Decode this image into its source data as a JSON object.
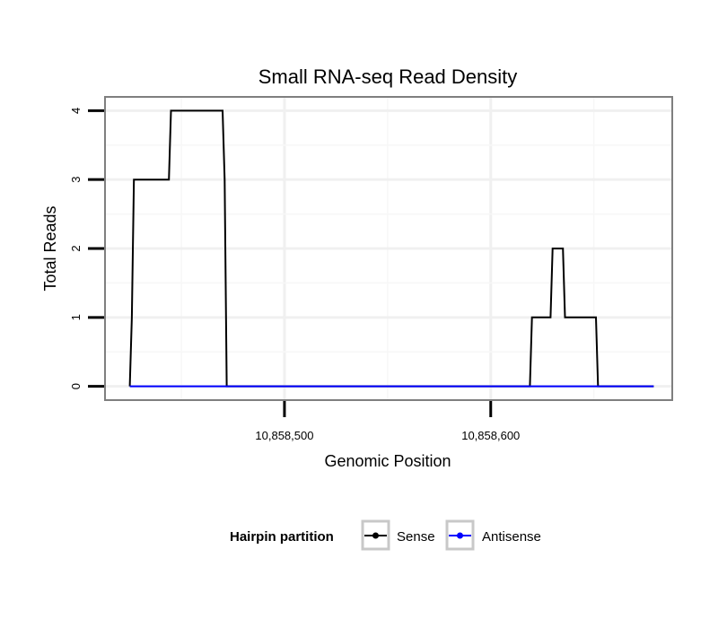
{
  "chart_data": {
    "type": "line",
    "title": "Small RNA-seq Read Density",
    "xlabel": "Genomic Position",
    "ylabel": "Total Reads",
    "xlim": [
      10858413,
      10858688
    ],
    "ylim": [
      -0.2,
      4.2
    ],
    "x_ticks": [
      10858500,
      10858600
    ],
    "x_tick_labels": [
      "10,858,500",
      "10,858,600"
    ],
    "y_ticks": [
      0,
      1,
      2,
      3,
      4
    ],
    "y_tick_labels": [
      "0",
      "1",
      "2",
      "3",
      "4"
    ],
    "grid": true,
    "legend": {
      "title": "Hairpin partition",
      "position": "bottom",
      "entries": [
        "Sense",
        "Antisense"
      ]
    },
    "series": [
      {
        "name": "Sense",
        "color": "#000000",
        "points": [
          [
            10858425,
            0
          ],
          [
            10858426,
            1
          ],
          [
            10858427,
            3
          ],
          [
            10858444,
            3
          ],
          [
            10858445,
            4
          ],
          [
            10858470,
            4
          ],
          [
            10858471,
            3
          ],
          [
            10858472,
            0
          ],
          [
            10858619,
            0
          ],
          [
            10858620,
            1
          ],
          [
            10858629,
            1
          ],
          [
            10858630,
            2
          ],
          [
            10858635,
            2
          ],
          [
            10858636,
            1
          ],
          [
            10858651,
            1
          ],
          [
            10858652,
            0
          ],
          [
            10858679,
            0
          ]
        ]
      },
      {
        "name": "Antisense",
        "color": "#0000ff",
        "points": [
          [
            10858425,
            0
          ],
          [
            10858679,
            0
          ]
        ]
      }
    ]
  }
}
